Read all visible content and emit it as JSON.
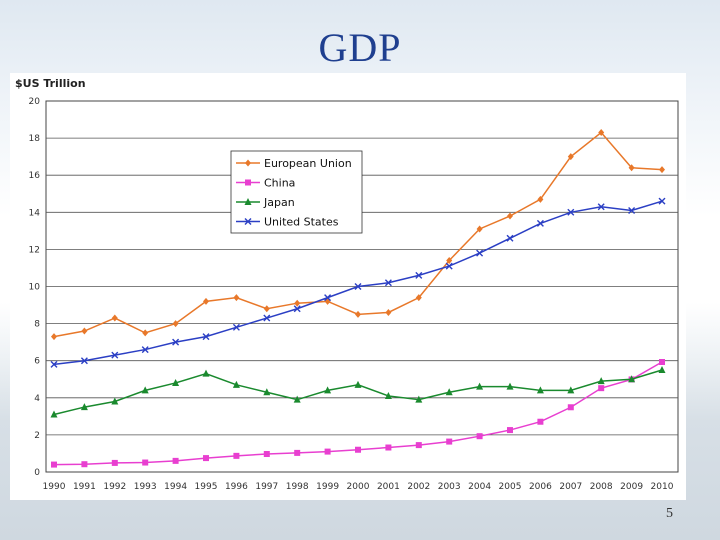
{
  "slide": {
    "title": "GDP",
    "page_number": "5"
  },
  "chart_data": {
    "type": "line",
    "title": "GDP",
    "xlabel": "",
    "ylabel": "$US Trillion",
    "ylim": [
      0,
      20
    ],
    "yticks": [
      0,
      2,
      4,
      6,
      8,
      10,
      12,
      14,
      16,
      18,
      20
    ],
    "grid": "horizontal",
    "legend_position": "top-left-inside",
    "x": [
      "1990",
      "1991",
      "1992",
      "1993",
      "1994",
      "1995",
      "1996",
      "1997",
      "1998",
      "1999",
      "2000",
      "2001",
      "2002",
      "2003",
      "2004",
      "2005",
      "2006",
      "2007",
      "2008",
      "2009",
      "2010"
    ],
    "series": [
      {
        "name": "European Union",
        "color": "#e8782a",
        "marker": "diamond",
        "values": [
          7.3,
          7.6,
          8.3,
          7.5,
          8.0,
          9.2,
          9.4,
          8.8,
          9.1,
          9.2,
          8.5,
          8.6,
          9.4,
          11.4,
          13.1,
          13.8,
          14.7,
          17.0,
          18.3,
          16.4,
          16.3
        ]
      },
      {
        "name": "China",
        "color": "#e83fd0",
        "marker": "square",
        "values": [
          0.4,
          0.42,
          0.49,
          0.51,
          0.6,
          0.75,
          0.87,
          0.97,
          1.03,
          1.1,
          1.2,
          1.32,
          1.45,
          1.64,
          1.93,
          2.26,
          2.71,
          3.49,
          4.52,
          4.99,
          5.93
        ]
      },
      {
        "name": "Japan",
        "color": "#1a8a2e",
        "marker": "triangle",
        "values": [
          3.1,
          3.5,
          3.8,
          4.4,
          4.8,
          5.3,
          4.7,
          4.3,
          3.9,
          4.4,
          4.7,
          4.1,
          3.9,
          4.3,
          4.6,
          4.6,
          4.4,
          4.4,
          4.9,
          5.0,
          5.5
        ]
      },
      {
        "name": "United States",
        "color": "#2b3fc4",
        "marker": "x",
        "values": [
          5.8,
          6.0,
          6.3,
          6.6,
          7.0,
          7.3,
          7.8,
          8.3,
          8.8,
          9.4,
          10.0,
          10.2,
          10.6,
          11.1,
          11.8,
          12.6,
          13.4,
          14.0,
          14.3,
          14.1,
          14.6
        ]
      }
    ]
  }
}
